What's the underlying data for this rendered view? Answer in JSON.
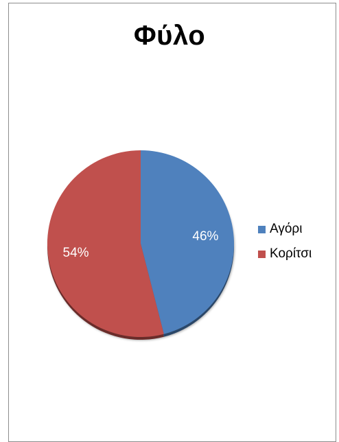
{
  "chart_data": {
    "type": "pie",
    "title": "Φύλο",
    "series": [
      {
        "name": "Αγόρι",
        "value": 46,
        "label": "46%",
        "color": "#4F81BD"
      },
      {
        "name": "Κορίτσι",
        "value": 54,
        "label": "54%",
        "color": "#C0504D"
      }
    ],
    "legend": "right"
  }
}
